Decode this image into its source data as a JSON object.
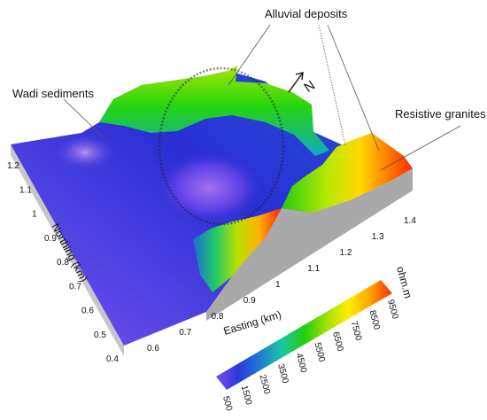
{
  "annotations": {
    "alluvial": "Alluvial deposits",
    "wadi": "Wadi sediments",
    "granites": "Resistive granites"
  },
  "north_arrow": {
    "label": "N"
  },
  "axes": {
    "northing": {
      "title": "Northing (km)",
      "ticks": [
        "0.4",
        "0.5",
        "0.6",
        "0.7",
        "0.8",
        "0.9",
        "1",
        "1.1",
        "1.2"
      ]
    },
    "easting": {
      "title": "Easting (km)",
      "ticks": [
        "0.6",
        "0.7",
        "0.8",
        "0.9",
        "1",
        "1.1",
        "1.2",
        "1.3",
        "1.4"
      ]
    }
  },
  "colorbar": {
    "unit": "ohm.m",
    "ticks": [
      "500",
      "1500",
      "2500",
      "3500",
      "4500",
      "5500",
      "6500",
      "7500",
      "8500",
      "9500"
    ],
    "colors": [
      "#7a4ef0",
      "#2a3ad8",
      "#1f7ad0",
      "#19c9a0",
      "#22cc10",
      "#9ee000",
      "#ffee00",
      "#ffa400",
      "#ff2a00"
    ]
  }
}
